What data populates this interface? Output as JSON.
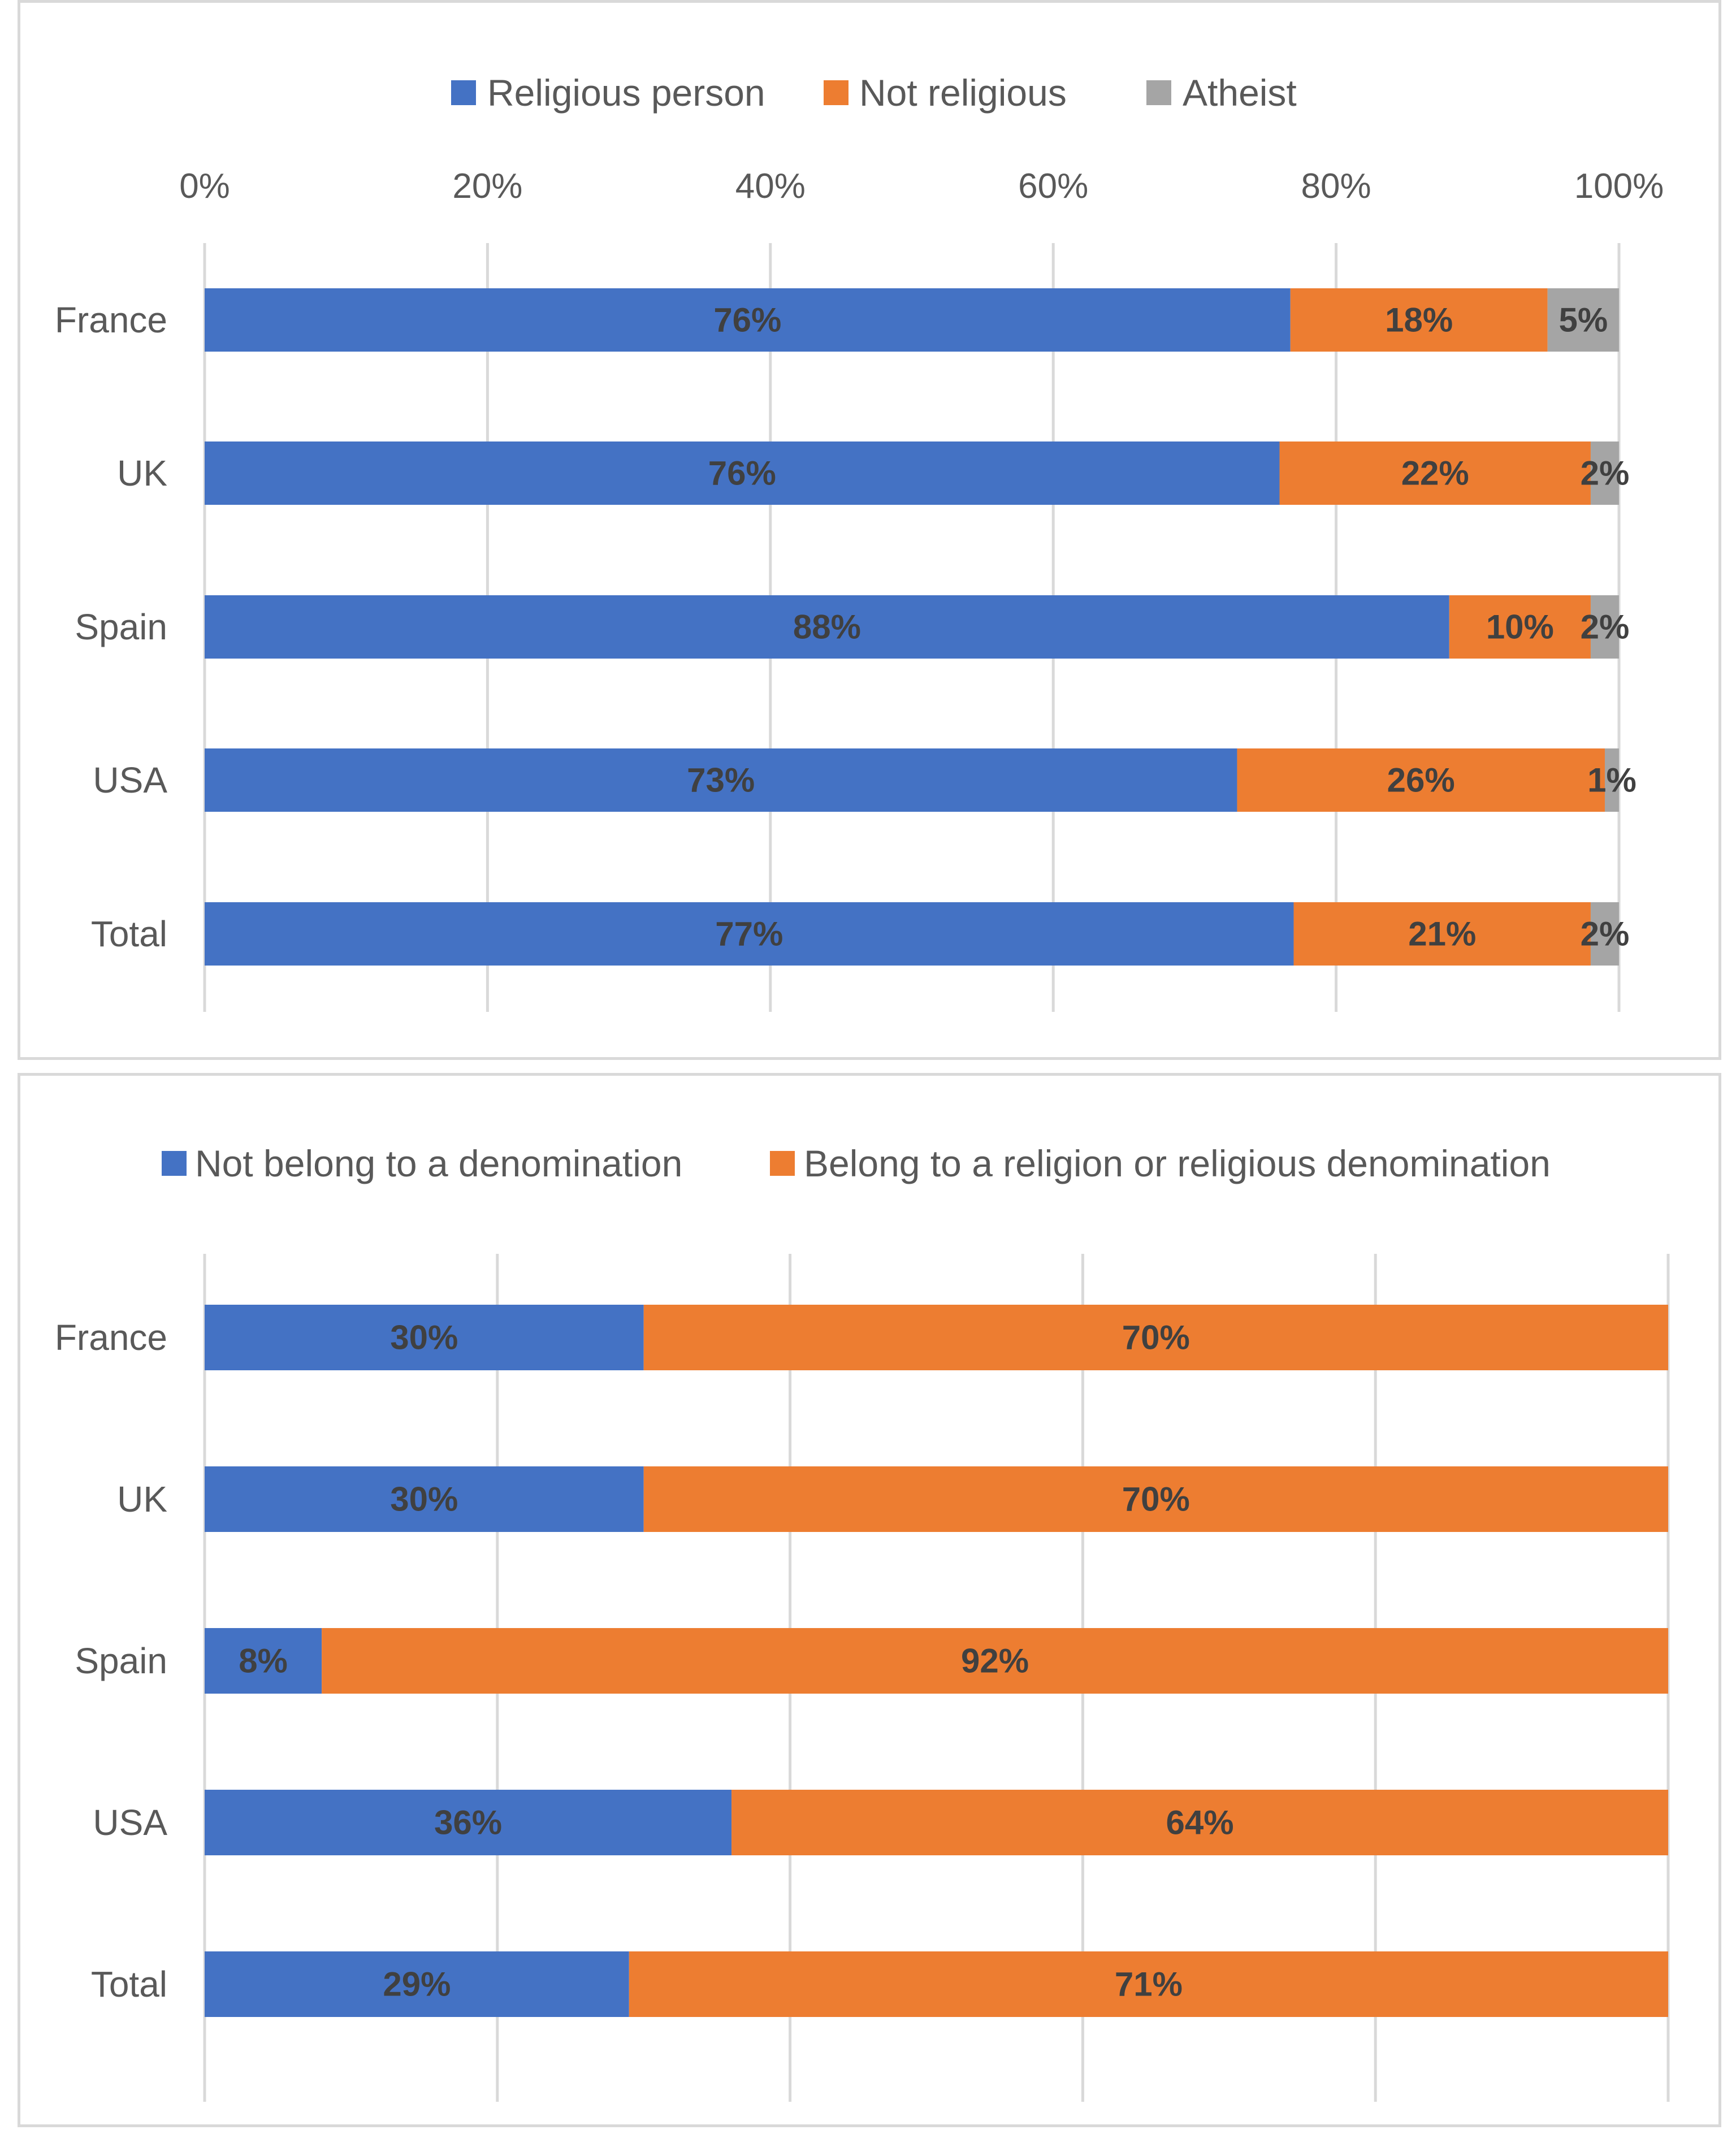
{
  "chart_data": [
    {
      "type": "bar",
      "orientation": "horizontal",
      "stacked": "percent",
      "categories": [
        "France",
        "UK",
        "Spain",
        "USA",
        "Total"
      ],
      "series": [
        {
          "name": "Religious person",
          "color": "#4472c4",
          "values": [
            76,
            76,
            88,
            73,
            77
          ],
          "labels": [
            "76%",
            "76%",
            "88%",
            "73%",
            "77%"
          ]
        },
        {
          "name": "Not  religious",
          "color": "#ed7d31",
          "values": [
            18,
            22,
            10,
            26,
            21
          ],
          "labels": [
            "18%",
            "22%",
            "10%",
            "26%",
            "21%"
          ]
        },
        {
          "name": "Atheist",
          "color": "#a5a5a5",
          "values": [
            5,
            2,
            2,
            1,
            2
          ],
          "labels": [
            "5%",
            "2%",
            "2%",
            "1%",
            "2%"
          ]
        }
      ],
      "xlim": [
        0,
        100
      ],
      "xticks": [
        "0%",
        "20%",
        "40%",
        "60%",
        "80%",
        "100%"
      ],
      "grid": true,
      "legend": "top"
    },
    {
      "type": "bar",
      "orientation": "horizontal",
      "stacked": "percent",
      "categories": [
        "France",
        "UK",
        "Spain",
        "USA",
        "Total"
      ],
      "series": [
        {
          "name": "Not belong to a denomination",
          "color": "#4472c4",
          "values": [
            30,
            30,
            8,
            36,
            29
          ],
          "labels": [
            "30%",
            "30%",
            "8%",
            "36%",
            "29%"
          ]
        },
        {
          "name": "Belong to a religion or religious denomination",
          "color": "#ed7d31",
          "values": [
            70,
            70,
            92,
            64,
            71
          ],
          "labels": [
            "70%",
            "70%",
            "92%",
            "64%",
            "71%"
          ]
        }
      ],
      "xlim": [
        0,
        100
      ],
      "grid": true,
      "legend": "top"
    }
  ]
}
